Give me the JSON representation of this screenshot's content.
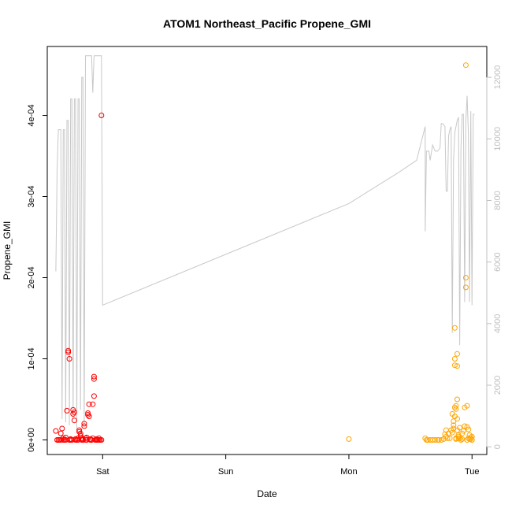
{
  "chart_data": {
    "type": "scatter",
    "title": "ATOM1 Northeast_Pacific Propene_GMI",
    "xlabel": "Date",
    "ylabel": "Propene_GMI",
    "x_ticks": [
      "Sat",
      "Sun",
      "Mon",
      "Tue"
    ],
    "x_tick_values": [
      1,
      2,
      3,
      4
    ],
    "xlim": [
      0.55,
      4.12
    ],
    "ylim": [
      -1.8e-05,
      0.000485
    ],
    "y_ticks": [
      0,
      0.0001,
      0.0002,
      0.0003,
      0.0004
    ],
    "y_tick_labels": [
      "0e+00",
      "1e-04",
      "2e-04",
      "3e-04",
      "4e-04"
    ],
    "secondary_y": {
      "ylim": [
        -250,
        13000
      ],
      "ticks": [
        0,
        2000,
        4000,
        6000,
        8000,
        10000,
        12000
      ],
      "tick_labels": [
        "0",
        "2000",
        "4000",
        "6000",
        "8000",
        "10000",
        "12000"
      ],
      "color": "#bfbfbf"
    },
    "grid": false,
    "series": [
      {
        "color": "#ff0000",
        "marker": "open-circle",
        "points": [
          [
            0.62,
            1.1e-05
          ],
          [
            0.63,
            0
          ],
          [
            0.65,
            0
          ],
          [
            0.66,
            8e-06
          ],
          [
            0.67,
            1.4e-05
          ],
          [
            0.68,
            0
          ],
          [
            0.69,
            0
          ],
          [
            0.7,
            0
          ],
          [
            0.71,
            3.6e-05
          ],
          [
            0.72,
            0.00011
          ],
          [
            0.72,
            0.000108
          ],
          [
            0.73,
            0.0001
          ],
          [
            0.73,
            0
          ],
          [
            0.74,
            0
          ],
          [
            0.75,
            0
          ],
          [
            0.76,
            3.7e-05
          ],
          [
            0.76,
            3.2e-05
          ],
          [
            0.77,
            3.4e-05
          ],
          [
            0.77,
            2.4e-05
          ],
          [
            0.78,
            0
          ],
          [
            0.79,
            0
          ],
          [
            0.8,
            0
          ],
          [
            0.81,
            1.2e-05
          ],
          [
            0.81,
            1e-05
          ],
          [
            0.82,
            8e-06
          ],
          [
            0.82,
            5e-06
          ],
          [
            0.83,
            2e-06
          ],
          [
            0.83,
            0
          ],
          [
            0.84,
            0
          ],
          [
            0.85,
            2e-05
          ],
          [
            0.85,
            1.7e-05
          ],
          [
            0.86,
            2e-06
          ],
          [
            0.86,
            0
          ],
          [
            0.87,
            0
          ],
          [
            0.88,
            3.3e-05
          ],
          [
            0.88,
            3.1e-05
          ],
          [
            0.89,
            4.4e-05
          ],
          [
            0.89,
            2.9e-05
          ],
          [
            0.9,
            0
          ],
          [
            0.91,
            0
          ],
          [
            0.92,
            4.4e-05
          ],
          [
            0.93,
            5.4e-05
          ],
          [
            0.93,
            7.8e-05
          ],
          [
            0.93,
            7.5e-05
          ],
          [
            0.94,
            0
          ],
          [
            0.95,
            0
          ],
          [
            0.96,
            0
          ],
          [
            0.97,
            0
          ],
          [
            0.98,
            0
          ],
          [
            0.99,
            0
          ],
          [
            0.99,
            0.0004
          ],
          [
            0.64,
            0
          ],
          [
            0.66,
            0
          ],
          [
            0.68,
            2e-06
          ],
          [
            0.7,
            3e-06
          ],
          [
            0.74,
            1e-06
          ],
          [
            0.78,
            1e-06
          ],
          [
            0.8,
            2e-06
          ],
          [
            0.84,
            1e-06
          ],
          [
            0.87,
            3e-06
          ],
          [
            0.9,
            1e-06
          ],
          [
            0.92,
            2e-06
          ],
          [
            0.95,
            1e-06
          ],
          [
            0.97,
            2e-06
          ]
        ]
      },
      {
        "color": "#ffa500",
        "marker": "open-circle",
        "points": [
          [
            3.0,
            1e-06
          ],
          [
            3.62,
            2e-06
          ],
          [
            3.63,
            0
          ],
          [
            3.64,
            0
          ],
          [
            3.66,
            0
          ],
          [
            3.68,
            0
          ],
          [
            3.7,
            0
          ],
          [
            3.72,
            0
          ],
          [
            3.73,
            0
          ],
          [
            3.75,
            0
          ],
          [
            3.77,
            1e-06
          ],
          [
            3.78,
            7e-06
          ],
          [
            3.79,
            4e-06
          ],
          [
            3.79,
            1.2e-05
          ],
          [
            3.8,
            2e-06
          ],
          [
            3.81,
            8e-06
          ],
          [
            3.82,
            2e-06
          ],
          [
            3.83,
            1.2e-05
          ],
          [
            3.84,
            3.2e-05
          ],
          [
            3.84,
            9e-06
          ],
          [
            3.85,
            1.4e-05
          ],
          [
            3.85,
            1.8e-05
          ],
          [
            3.85,
            2.3e-05
          ],
          [
            3.86,
            2.9e-05
          ],
          [
            3.86,
            4e-05
          ],
          [
            3.86,
            9.2e-05
          ],
          [
            3.86,
            0.000138
          ],
          [
            3.86,
            0.0001
          ],
          [
            3.87,
            4.2e-05
          ],
          [
            3.87,
            3.8e-05
          ],
          [
            3.87,
            2e-06
          ],
          [
            3.88,
            5e-05
          ],
          [
            3.88,
            0.000106
          ],
          [
            3.88,
            9.1e-05
          ],
          [
            3.88,
            1.2e-05
          ],
          [
            3.88,
            2.6e-05
          ],
          [
            3.89,
            6e-06
          ],
          [
            3.89,
            4e-06
          ],
          [
            3.9,
            1.5e-05
          ],
          [
            3.9,
            2e-06
          ],
          [
            3.91,
            0
          ],
          [
            3.92,
            8e-06
          ],
          [
            3.93,
            1.1e-05
          ],
          [
            3.94,
            1.7e-05
          ],
          [
            3.94,
            4e-05
          ],
          [
            3.95,
            0.000188
          ],
          [
            3.95,
            0.0002
          ],
          [
            3.95,
            0.000462
          ],
          [
            3.96,
            4.2e-05
          ],
          [
            3.96,
            1.6e-05
          ],
          [
            3.97,
            2e-06
          ],
          [
            3.97,
            1.3e-05
          ],
          [
            3.98,
            6e-06
          ],
          [
            3.99,
            3e-06
          ],
          [
            3.99,
            1e-06
          ],
          [
            4.0,
            4e-06
          ],
          [
            4.0,
            0
          ],
          [
            3.87,
            1e-06
          ],
          [
            3.89,
            2e-06
          ],
          [
            3.92,
            1e-06
          ],
          [
            3.96,
            0
          ],
          [
            3.98,
            1e-06
          ]
        ]
      }
    ],
    "secondary_line": {
      "color": "#c8c8c8",
      "points": [
        [
          0.62,
          5700
        ],
        [
          0.63,
          9000
        ],
        [
          0.64,
          10300
        ],
        [
          0.65,
          10300
        ],
        [
          0.66,
          10300
        ],
        [
          0.67,
          900
        ],
        [
          0.68,
          10300
        ],
        [
          0.69,
          10300
        ],
        [
          0.7,
          800
        ],
        [
          0.71,
          10600
        ],
        [
          0.72,
          10600
        ],
        [
          0.73,
          700
        ],
        [
          0.74,
          11300
        ],
        [
          0.75,
          11300
        ],
        [
          0.76,
          900
        ],
        [
          0.77,
          11300
        ],
        [
          0.78,
          11300
        ],
        [
          0.79,
          600
        ],
        [
          0.8,
          11300
        ],
        [
          0.81,
          11300
        ],
        [
          0.82,
          1200
        ],
        [
          0.83,
          12000
        ],
        [
          0.84,
          12000
        ],
        [
          0.85,
          700
        ],
        [
          0.86,
          12700
        ],
        [
          0.87,
          12700
        ],
        [
          0.88,
          12700
        ],
        [
          0.89,
          12700
        ],
        [
          0.9,
          12700
        ],
        [
          0.91,
          12700
        ],
        [
          0.92,
          11500
        ],
        [
          0.93,
          12700
        ],
        [
          0.94,
          12700
        ],
        [
          0.95,
          12700
        ],
        [
          0.96,
          12700
        ],
        [
          0.97,
          12700
        ],
        [
          0.98,
          12700
        ],
        [
          0.99,
          12700
        ],
        [
          1.0,
          4600
        ],
        [
          3.0,
          7900
        ],
        [
          3.2,
          8400
        ],
        [
          3.4,
          8900
        ],
        [
          3.55,
          9300
        ],
        [
          3.62,
          10400
        ],
        [
          3.62,
          7000
        ],
        [
          3.63,
          9600
        ],
        [
          3.64,
          9600
        ],
        [
          3.65,
          9600
        ],
        [
          3.66,
          9300
        ],
        [
          3.68,
          9800
        ],
        [
          3.7,
          9600
        ],
        [
          3.72,
          9600
        ],
        [
          3.74,
          9700
        ],
        [
          3.75,
          10500
        ],
        [
          3.76,
          10500
        ],
        [
          3.78,
          10400
        ],
        [
          3.79,
          8300
        ],
        [
          3.8,
          8300
        ],
        [
          3.81,
          10100
        ],
        [
          3.82,
          10300
        ],
        [
          3.83,
          10400
        ],
        [
          3.84,
          3700
        ],
        [
          3.85,
          9300
        ],
        [
          3.86,
          10200
        ],
        [
          3.87,
          10400
        ],
        [
          3.88,
          10600
        ],
        [
          3.89,
          10700
        ],
        [
          3.9,
          3300
        ],
        [
          3.91,
          9700
        ],
        [
          3.92,
          10800
        ],
        [
          3.93,
          10800
        ],
        [
          3.94,
          4700
        ],
        [
          3.95,
          10600
        ],
        [
          3.96,
          11400
        ],
        [
          3.97,
          10200
        ],
        [
          3.98,
          4700
        ],
        [
          3.99,
          10900
        ],
        [
          4.0,
          4600
        ],
        [
          4.01,
          10800
        ],
        [
          4.02,
          10800
        ]
      ]
    }
  }
}
